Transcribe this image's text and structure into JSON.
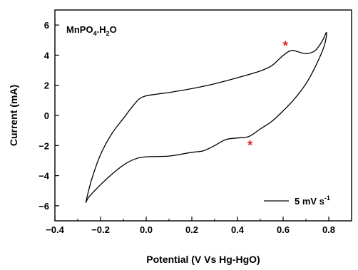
{
  "chart_data": {
    "type": "line",
    "title": "",
    "xlabel": "Potential (V Vs Hg-HgO)",
    "ylabel": "Current (mA)",
    "xlim": [
      -0.4,
      0.9
    ],
    "ylim": [
      -7,
      7
    ],
    "x_ticks": [
      -0.4,
      -0.2,
      0.0,
      0.2,
      0.4,
      0.6,
      0.8
    ],
    "x_tick_labels": [
      "−0.4",
      "−0.2",
      "0.0",
      "0.2",
      "0.4",
      "0.6",
      "0.8"
    ],
    "y_ticks": [
      -6,
      -4,
      -2,
      0,
      2,
      4,
      6
    ],
    "y_tick_labels": [
      "−6",
      "−4",
      "−2",
      "0",
      "2",
      "4",
      "6"
    ],
    "sample_label": {
      "main": "MnPO",
      "sub1": "4",
      "mid": ".H",
      "sub2": "2",
      "end": "O"
    },
    "series": [
      {
        "name": "5 mV s-1",
        "color": "#000000",
        "x": [
          -0.265,
          -0.24,
          -0.2,
          -0.15,
          -0.1,
          -0.06,
          -0.03,
          0.0,
          0.05,
          0.1,
          0.2,
          0.3,
          0.4,
          0.5,
          0.55,
          0.59,
          0.62,
          0.64,
          0.66,
          0.7,
          0.74,
          0.77,
          0.79,
          0.78,
          0.74,
          0.7,
          0.65,
          0.6,
          0.55,
          0.5,
          0.45,
          0.4,
          0.35,
          0.3,
          0.25,
          0.2,
          0.1,
          0.0,
          -0.05,
          -0.1,
          -0.15,
          -0.2,
          -0.25,
          -0.265
        ],
        "y": [
          -5.8,
          -4.3,
          -2.6,
          -1.2,
          -0.2,
          0.6,
          1.1,
          1.3,
          1.42,
          1.52,
          1.78,
          2.1,
          2.5,
          2.95,
          3.3,
          3.85,
          4.2,
          4.32,
          4.25,
          4.1,
          4.3,
          4.9,
          5.5,
          4.6,
          3.2,
          2.1,
          1.1,
          0.3,
          -0.4,
          -0.9,
          -1.4,
          -1.5,
          -1.6,
          -2.0,
          -2.35,
          -2.45,
          -2.7,
          -2.75,
          -2.9,
          -3.3,
          -3.9,
          -4.6,
          -5.4,
          -5.8
        ]
      }
    ],
    "legend": {
      "text": "5 mV s",
      "superscript": "-1",
      "position": "bottom-right"
    },
    "annotations": [
      {
        "text": "*",
        "color": "#e02020",
        "x": 0.61,
        "y": 4.65
      },
      {
        "text": "*",
        "color": "#e02020",
        "x": 0.455,
        "y": -1.95
      }
    ],
    "grid": false
  }
}
